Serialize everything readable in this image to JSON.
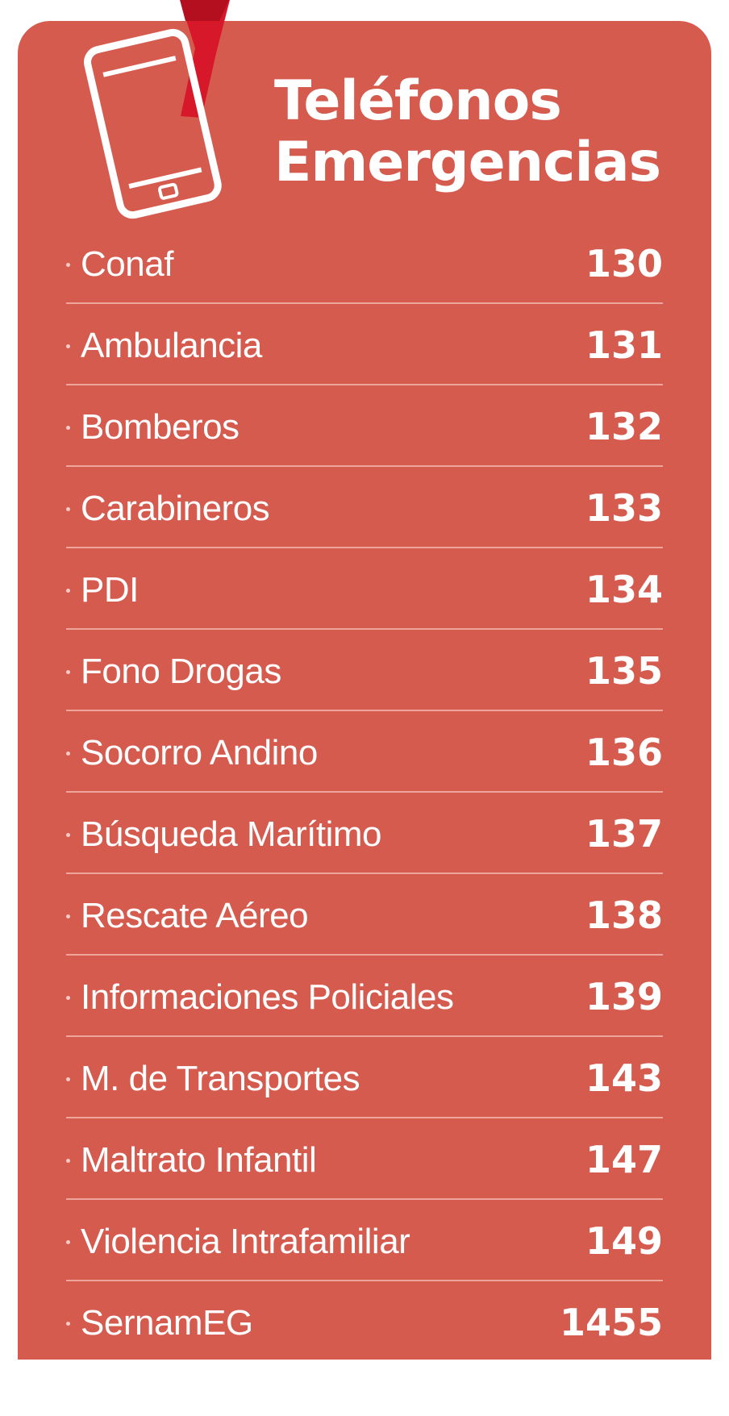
{
  "header": {
    "icon": "phone-icon",
    "title_line1": "Teléfonos",
    "title_line2": "Emergencias"
  },
  "colors": {
    "card_background": "#d65b4f",
    "accent_red": "#d7172a",
    "divider": "#eda59c",
    "text": "#ffffff"
  },
  "contacts": [
    {
      "name": "Conaf",
      "number": "130"
    },
    {
      "name": "Ambulancia",
      "number": "131"
    },
    {
      "name": "Bomberos",
      "number": "132"
    },
    {
      "name": "Carabineros",
      "number": "133"
    },
    {
      "name": "PDI",
      "number": "134"
    },
    {
      "name": "Fono Drogas",
      "number": "135"
    },
    {
      "name": "Socorro Andino",
      "number": "136"
    },
    {
      "name": "Búsqueda Marítimo",
      "number": "137"
    },
    {
      "name": "Rescate Aéreo",
      "number": "138"
    },
    {
      "name": "Informaciones Policiales",
      "number": "139"
    },
    {
      "name": "M. de Transportes",
      "number": "143"
    },
    {
      "name": "Maltrato Infantil",
      "number": "147"
    },
    {
      "name": "Violencia Intrafamiliar",
      "number": "149"
    },
    {
      "name": "SernamEG",
      "number": "1455"
    }
  ]
}
